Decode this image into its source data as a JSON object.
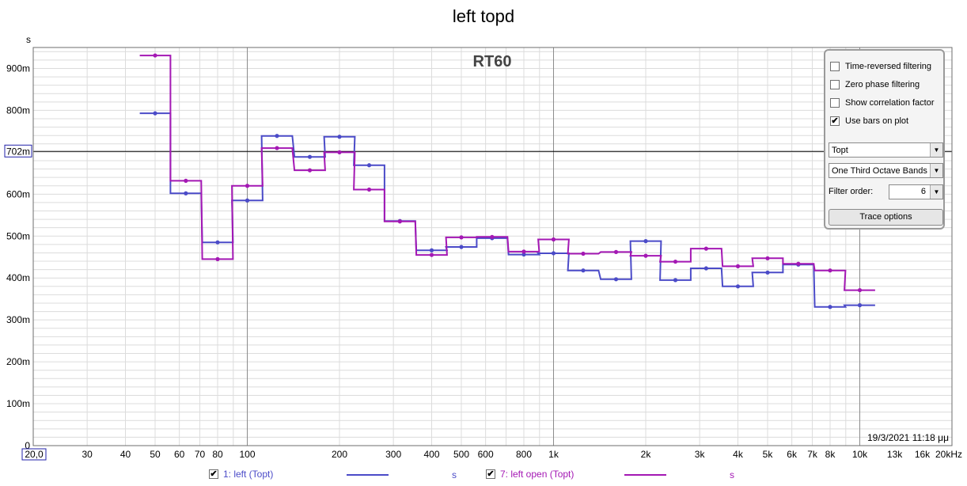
{
  "window": {
    "title": "left topd"
  },
  "options_panel": {
    "checkboxes": [
      {
        "label": "Time-reversed filtering",
        "checked": false
      },
      {
        "label": "Zero phase filtering",
        "checked": false
      },
      {
        "label": "Show correlation factor",
        "checked": false
      },
      {
        "label": "Use bars on plot",
        "checked": true
      }
    ],
    "metric_select": "Topt",
    "band_select": "One Third Octave Bands",
    "filter_order_label": "Filter order:",
    "filter_order_value": "6",
    "trace_button": "Trace options"
  },
  "legend": [
    {
      "label": "1: left (Topt)",
      "checked": true,
      "unit": "s",
      "color": "#4b4bc8"
    },
    {
      "label": "7: left open (Topt)",
      "checked": true,
      "unit": "s",
      "color": "#a418b4"
    }
  ],
  "colors": {
    "grid_major": "#8c8c8c",
    "grid_minor": "#dcdcdc",
    "axis_value_text": "#2222aa"
  },
  "chart_data": {
    "type": "line",
    "title": "left topd",
    "plot_label": "RT60",
    "y_unit_label": "s",
    "x_scale": "log",
    "xlim": [
      20,
      20000
    ],
    "ylim": [
      0,
      0.95
    ],
    "x_tick_labels": [
      {
        "v": 20,
        "t": "20,0"
      },
      {
        "v": 30,
        "t": "30"
      },
      {
        "v": 40,
        "t": "40"
      },
      {
        "v": 50,
        "t": "50"
      },
      {
        "v": 60,
        "t": "60"
      },
      {
        "v": 70,
        "t": "70"
      },
      {
        "v": 80,
        "t": "80"
      },
      {
        "v": 100,
        "t": "100"
      },
      {
        "v": 200,
        "t": "200"
      },
      {
        "v": 300,
        "t": "300"
      },
      {
        "v": 400,
        "t": "400"
      },
      {
        "v": 500,
        "t": "500"
      },
      {
        "v": 600,
        "t": "600"
      },
      {
        "v": 800,
        "t": "800"
      },
      {
        "v": 1000,
        "t": "1k"
      },
      {
        "v": 2000,
        "t": "2k"
      },
      {
        "v": 3000,
        "t": "3k"
      },
      {
        "v": 4000,
        "t": "4k"
      },
      {
        "v": 5000,
        "t": "5k"
      },
      {
        "v": 6000,
        "t": "6k"
      },
      {
        "v": 7000,
        "t": "7k"
      },
      {
        "v": 8000,
        "t": "8k"
      },
      {
        "v": 10000,
        "t": "10k"
      },
      {
        "v": 13000,
        "t": "13k"
      },
      {
        "v": 16000,
        "t": "16k"
      },
      {
        "v": 20000,
        "t": "20kHz"
      }
    ],
    "y_tick_labels": [
      {
        "v": 0,
        "t": "0"
      },
      {
        "v": 0.1,
        "t": "100m"
      },
      {
        "v": 0.2,
        "t": "200m"
      },
      {
        "v": 0.3,
        "t": "300m"
      },
      {
        "v": 0.4,
        "t": "400m"
      },
      {
        "v": 0.5,
        "t": "500m"
      },
      {
        "v": 0.6,
        "t": "600m"
      },
      {
        "v": 0.7,
        "t": "702m"
      },
      {
        "v": 0.8,
        "t": "800m"
      },
      {
        "v": 0.9,
        "t": "900m"
      }
    ],
    "cursor_y_value": 0.702,
    "cursor_y_label": "702m",
    "timestamp": "19/3/2021 11:18 μμ",
    "x": [
      50,
      63,
      80,
      100,
      125,
      160,
      200,
      250,
      315,
      400,
      500,
      630,
      800,
      1000,
      1250,
      1600,
      2000,
      2500,
      3150,
      4000,
      5000,
      6300,
      8000,
      10000
    ],
    "series": [
      {
        "name": "1: left (Topt)",
        "color": "#4b4bc8",
        "values": [
          0.793,
          0.602,
          0.485,
          0.585,
          0.739,
          0.689,
          0.737,
          0.669,
          0.536,
          0.466,
          0.474,
          0.495,
          0.456,
          0.459,
          0.418,
          0.397,
          0.488,
          0.395,
          0.423,
          0.38,
          0.413,
          0.432,
          0.331,
          0.335
        ]
      },
      {
        "name": "7: left open (Topt)",
        "color": "#a418b4",
        "values": [
          0.931,
          0.632,
          0.445,
          0.62,
          0.71,
          0.657,
          0.7,
          0.611,
          0.535,
          0.455,
          0.497,
          0.498,
          0.463,
          0.492,
          0.458,
          0.462,
          0.453,
          0.439,
          0.47,
          0.428,
          0.447,
          0.434,
          0.418,
          0.371
        ]
      }
    ]
  }
}
